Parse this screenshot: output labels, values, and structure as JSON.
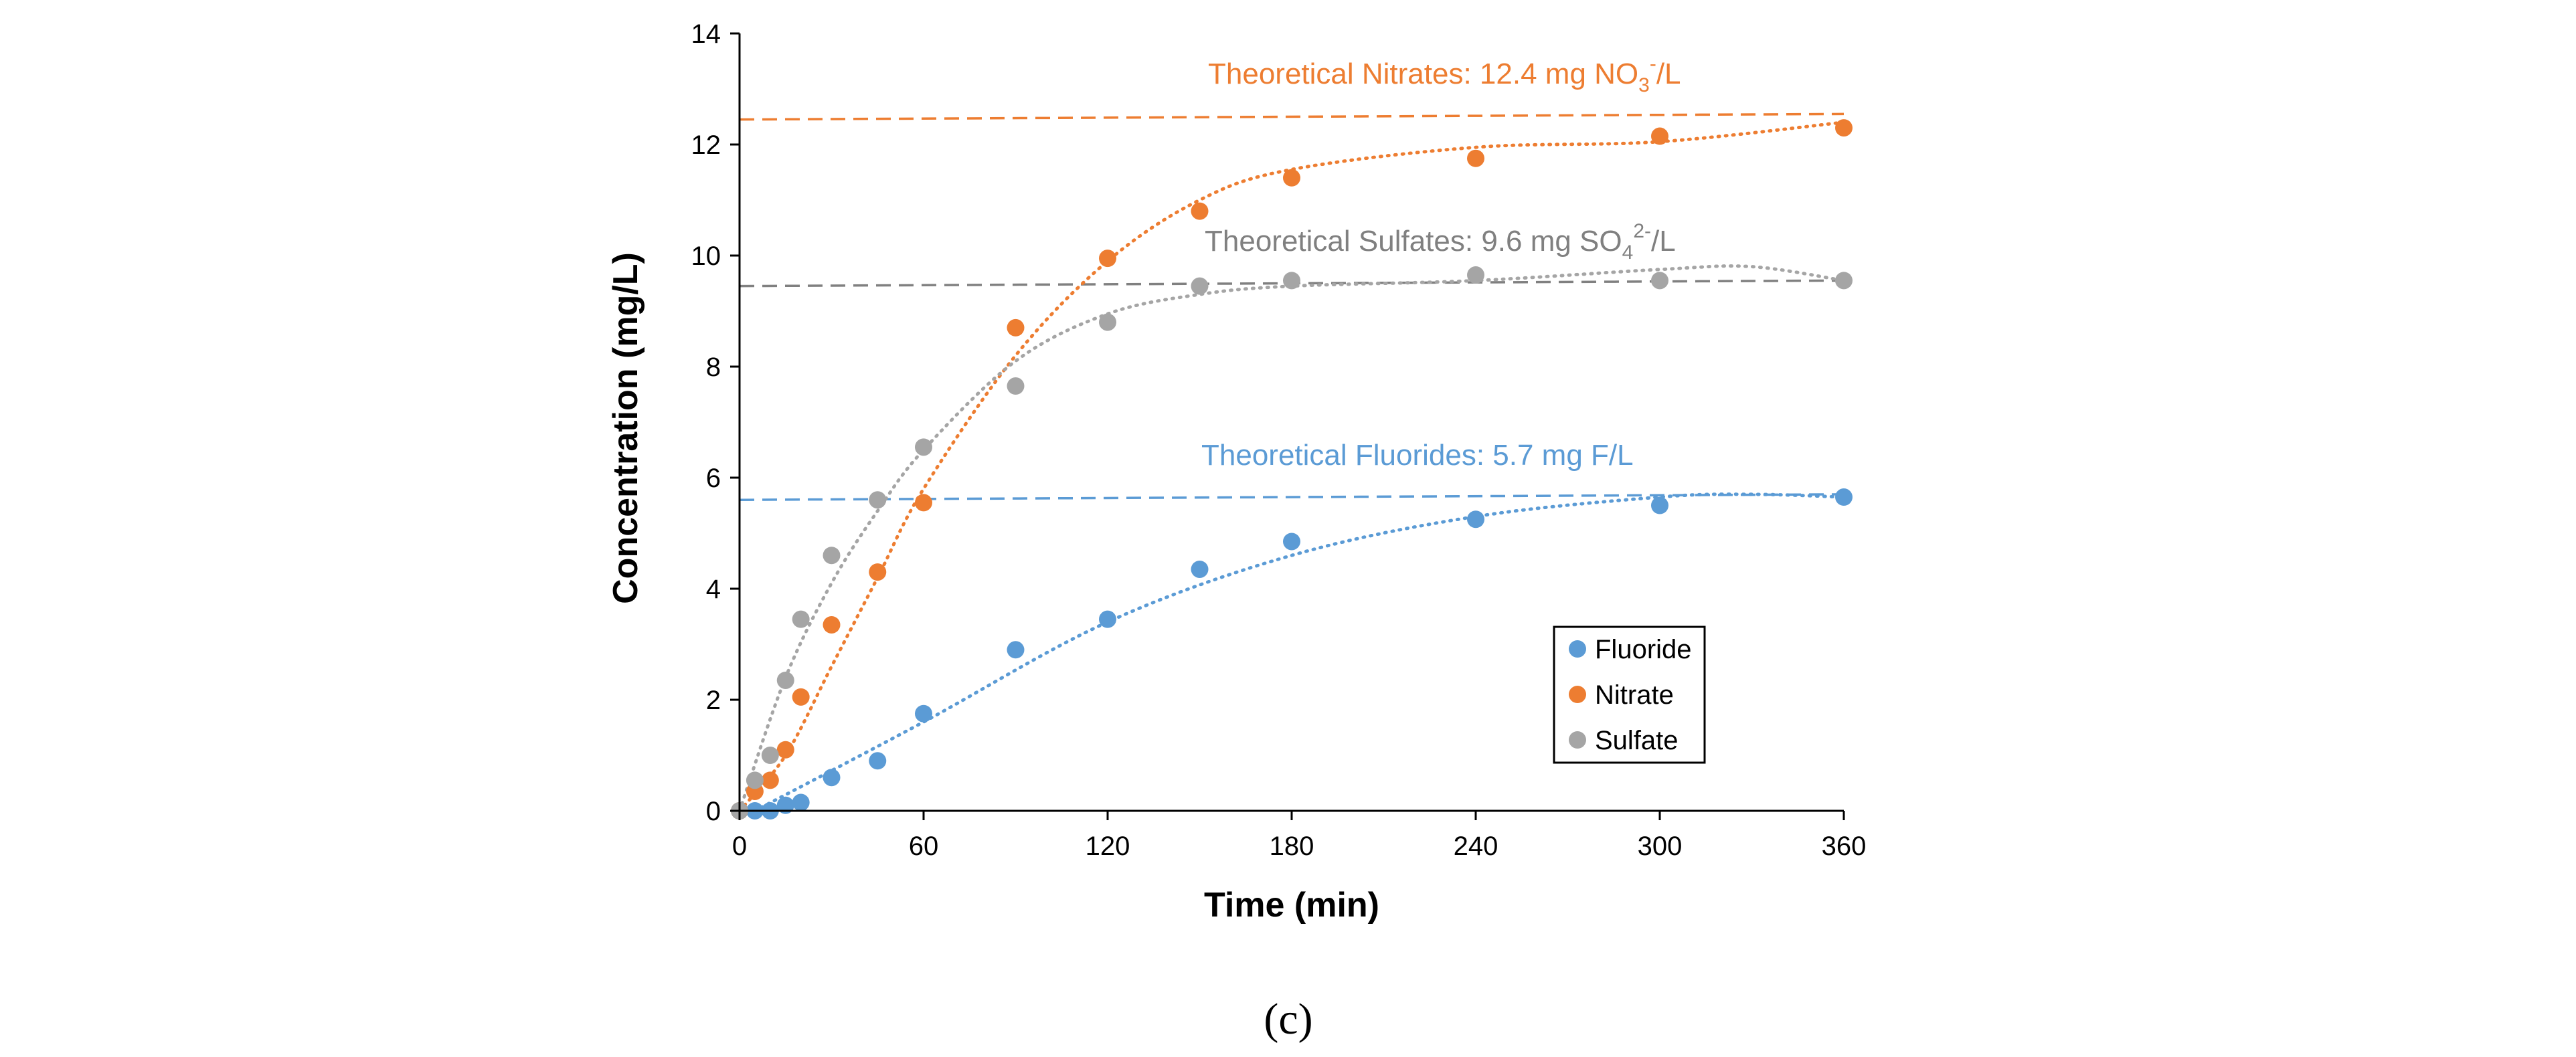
{
  "chart_data": {
    "type": "scatter",
    "title": "",
    "xlabel": "Time (min)",
    "ylabel": "Concentration (mg/L)",
    "xlim": [
      0,
      360
    ],
    "ylim": [
      0,
      14
    ],
    "xticks": [
      0,
      60,
      120,
      180,
      240,
      300,
      360
    ],
    "yticks": [
      0,
      2,
      4,
      6,
      8,
      10,
      12,
      14
    ],
    "grid": false,
    "legend_position": "bottom-right",
    "panel_label": "(c)",
    "colors": {
      "fluoride": "#5b9bd5",
      "nitrate": "#ed7d31",
      "sulfate": "#a5a5a5",
      "sulfate_theory": "#808080"
    },
    "series": [
      {
        "name": "Fluoride",
        "color": "#5b9bd5",
        "x": [
          0,
          5,
          10,
          15,
          20,
          30,
          45,
          60,
          90,
          120,
          150,
          180,
          240,
          300,
          360
        ],
        "y": [
          0.0,
          0.0,
          0.0,
          0.1,
          0.15,
          0.6,
          0.9,
          1.75,
          2.9,
          3.45,
          4.35,
          4.85,
          5.25,
          5.5,
          5.65
        ],
        "trend": {
          "x": [
            5,
            60,
            120,
            180,
            240,
            300,
            330,
            360
          ],
          "y": [
            0.0,
            1.6,
            3.4,
            4.6,
            5.3,
            5.65,
            5.7,
            5.65
          ]
        }
      },
      {
        "name": "Nitrate",
        "color": "#ed7d31",
        "x": [
          0,
          5,
          10,
          15,
          20,
          30,
          45,
          60,
          90,
          120,
          150,
          180,
          240,
          300,
          360
        ],
        "y": [
          0.0,
          0.35,
          0.55,
          1.1,
          2.05,
          3.35,
          4.3,
          5.55,
          8.7,
          9.95,
          10.8,
          11.4,
          11.75,
          12.15,
          12.3
        ],
        "trend": {
          "x": [
            0,
            15,
            30,
            45,
            60,
            90,
            120,
            150,
            180,
            240,
            300,
            360
          ],
          "y": [
            0.0,
            1.0,
            2.6,
            4.2,
            5.8,
            8.2,
            9.9,
            11.0,
            11.55,
            11.95,
            12.05,
            12.4
          ]
        }
      },
      {
        "name": "Sulfate",
        "color": "#a5a5a5",
        "x": [
          0,
          5,
          10,
          15,
          20,
          30,
          45,
          60,
          90,
          120,
          150,
          180,
          240,
          300,
          360
        ],
        "y": [
          0.0,
          0.55,
          1.0,
          2.35,
          3.45,
          4.6,
          5.6,
          6.55,
          7.65,
          8.8,
          9.45,
          9.55,
          9.65,
          9.55,
          9.55
        ],
        "trend": {
          "x": [
            0,
            15,
            30,
            45,
            60,
            90,
            120,
            150,
            180,
            240,
            300,
            330,
            360
          ],
          "y": [
            0.0,
            2.4,
            4.1,
            5.4,
            6.5,
            8.1,
            8.95,
            9.3,
            9.45,
            9.55,
            9.75,
            9.8,
            9.55
          ]
        }
      }
    ],
    "theoretical": [
      {
        "name": "Nitrates",
        "value": 12.4,
        "color": "#ed7d31",
        "line": {
          "x": [
            0,
            360
          ],
          "y": [
            12.45,
            12.55
          ]
        },
        "label": {
          "prefix": "Theoretical Nitrates: 12.4 mg NO",
          "sub": "3",
          "sup": "-",
          "suffix": "/L"
        }
      },
      {
        "name": "Sulfates",
        "value": 9.6,
        "color": "#808080",
        "line": {
          "x": [
            0,
            360
          ],
          "y": [
            9.45,
            9.55
          ]
        },
        "label": {
          "prefix": "Theoretical Sulfates: 9.6 mg  SO",
          "sub": "4",
          "sup": "2-",
          "suffix": "/L"
        }
      },
      {
        "name": "Fluorides",
        "value": 5.7,
        "color": "#5b9bd5",
        "line": {
          "x": [
            0,
            360
          ],
          "y": [
            5.6,
            5.7
          ]
        },
        "label": {
          "prefix": "Theoretical Fluorides: 5.7 mg  F/L",
          "sub": "",
          "sup": "",
          "suffix": ""
        }
      }
    ]
  }
}
